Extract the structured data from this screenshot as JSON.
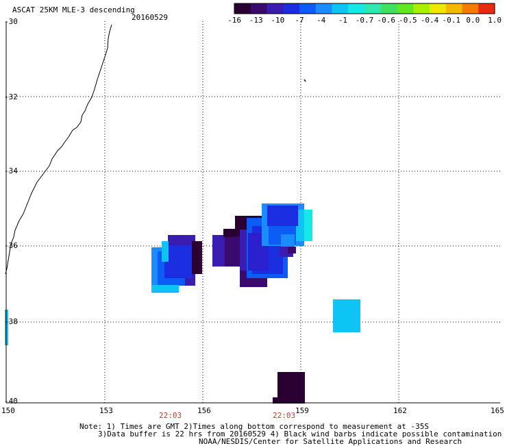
{
  "header": {
    "title": "ASCAT 25KM MLE-3 descending",
    "date": "20160529"
  },
  "colorbar": {
    "colors": [
      "#2a0033",
      "#3b0a6e",
      "#3a1cb0",
      "#1a2ee0",
      "#0a5cf5",
      "#1a8cff",
      "#0ec4f5",
      "#16e8e8",
      "#2ee8b0",
      "#40e060",
      "#60e820",
      "#a8f000",
      "#f0e800",
      "#f5b800",
      "#f57a00",
      "#e82a10"
    ],
    "labels": [
      "-16",
      "-13",
      "-10",
      "-7",
      "-4",
      "-1",
      "-0.7",
      "-0.6",
      "-0.5",
      "-0.4",
      "-0.1",
      "0.0",
      "1.0"
    ]
  },
  "axes": {
    "lat_labels": [
      "-30",
      "-32",
      "-34",
      "-36",
      "-38",
      "-40"
    ],
    "lon_labels": [
      "150",
      "153",
      "156",
      "159",
      "162",
      "165"
    ]
  },
  "times": [
    "22:03",
    "22:03"
  ],
  "notes": {
    "line1": "Note: 1) Times are GMT 2)Times along bottom correspond to measurement at -35S",
    "line2": "3)Data buffer is 22 hrs from 20160529 4) Black wind barbs indicate possible contamination",
    "line3": "NOAA/NESDIS/Center for Satellite Applications and Research"
  }
}
